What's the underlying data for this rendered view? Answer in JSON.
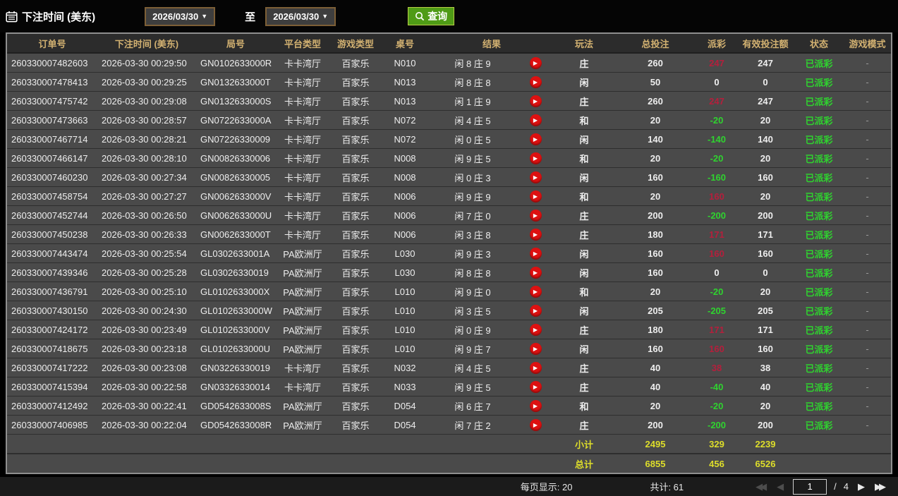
{
  "colors": {
    "header_gold": "#d2b171",
    "payout_red": "#b41f3c",
    "payout_green": "#2fd32f",
    "status_green": "#2fd32f",
    "footer_yellow": "#dede2a",
    "button_green": "#4f9b16"
  },
  "icons": {
    "calendar": "calendar-icon",
    "search": "search-icon",
    "dropdown": "▼",
    "play": "▶",
    "first": "◀◀",
    "prev": "◀",
    "next": "▶",
    "last": "▶▶"
  },
  "topbar": {
    "label": "下注时间 (美东)",
    "date_from": "2026/03/30",
    "to_label": "至",
    "date_to": "2026/03/30",
    "search_label": "查询"
  },
  "table": {
    "headers": [
      "订单号",
      "下注时间 (美东)",
      "局号",
      "平台类型",
      "游戏类型",
      "桌号",
      "结果",
      "玩法",
      "总投注",
      "派彩",
      "有效投注额",
      "状态",
      "游戏模式"
    ],
    "rows": [
      {
        "order": "260330007482603",
        "time": "2026-03-30 00:29:50",
        "round": "GN0102633000R",
        "platform": "卡卡湾厅",
        "game": "百家乐",
        "table": "N010",
        "result": "闲 8 庄 9",
        "bet_on": "庄",
        "bet": "260",
        "payout": "247",
        "payout_state": "pos",
        "valid": "247",
        "status": "已派彩",
        "mode": "-"
      },
      {
        "order": "260330007478413",
        "time": "2026-03-30 00:29:25",
        "round": "GN0132633000T",
        "platform": "卡卡湾厅",
        "game": "百家乐",
        "table": "N013",
        "result": "闲 8 庄 8",
        "bet_on": "闲",
        "bet": "50",
        "payout": "0",
        "payout_state": "zero",
        "valid": "0",
        "status": "已派彩",
        "mode": "-"
      },
      {
        "order": "260330007475742",
        "time": "2026-03-30 00:29:08",
        "round": "GN0132633000S",
        "platform": "卡卡湾厅",
        "game": "百家乐",
        "table": "N013",
        "result": "闲 1 庄 9",
        "bet_on": "庄",
        "bet": "260",
        "payout": "247",
        "payout_state": "pos",
        "valid": "247",
        "status": "已派彩",
        "mode": "-"
      },
      {
        "order": "260330007473663",
        "time": "2026-03-30 00:28:57",
        "round": "GN0722633000A",
        "platform": "卡卡湾厅",
        "game": "百家乐",
        "table": "N072",
        "result": "闲 4 庄 5",
        "bet_on": "和",
        "bet": "20",
        "payout": "-20",
        "payout_state": "neg",
        "valid": "20",
        "status": "已派彩",
        "mode": "-"
      },
      {
        "order": "260330007467714",
        "time": "2026-03-30 00:28:21",
        "round": "GN07226330009",
        "platform": "卡卡湾厅",
        "game": "百家乐",
        "table": "N072",
        "result": "闲 0 庄 5",
        "bet_on": "闲",
        "bet": "140",
        "payout": "-140",
        "payout_state": "neg",
        "valid": "140",
        "status": "已派彩",
        "mode": "-"
      },
      {
        "order": "260330007466147",
        "time": "2026-03-30 00:28:10",
        "round": "GN00826330006",
        "platform": "卡卡湾厅",
        "game": "百家乐",
        "table": "N008",
        "result": "闲 9 庄 5",
        "bet_on": "和",
        "bet": "20",
        "payout": "-20",
        "payout_state": "neg",
        "valid": "20",
        "status": "已派彩",
        "mode": "-"
      },
      {
        "order": "260330007460230",
        "time": "2026-03-30 00:27:34",
        "round": "GN00826330005",
        "platform": "卡卡湾厅",
        "game": "百家乐",
        "table": "N008",
        "result": "闲 0 庄 3",
        "bet_on": "闲",
        "bet": "160",
        "payout": "-160",
        "payout_state": "neg",
        "valid": "160",
        "status": "已派彩",
        "mode": "-"
      },
      {
        "order": "260330007458754",
        "time": "2026-03-30 00:27:27",
        "round": "GN0062633000V",
        "platform": "卡卡湾厅",
        "game": "百家乐",
        "table": "N006",
        "result": "闲 9 庄 9",
        "bet_on": "和",
        "bet": "20",
        "payout": "160",
        "payout_state": "pos",
        "valid": "20",
        "status": "已派彩",
        "mode": "-"
      },
      {
        "order": "260330007452744",
        "time": "2026-03-30 00:26:50",
        "round": "GN0062633000U",
        "platform": "卡卡湾厅",
        "game": "百家乐",
        "table": "N006",
        "result": "闲 7 庄 0",
        "bet_on": "庄",
        "bet": "200",
        "payout": "-200",
        "payout_state": "neg",
        "valid": "200",
        "status": "已派彩",
        "mode": "-"
      },
      {
        "order": "260330007450238",
        "time": "2026-03-30 00:26:33",
        "round": "GN0062633000T",
        "platform": "卡卡湾厅",
        "game": "百家乐",
        "table": "N006",
        "result": "闲 3 庄 8",
        "bet_on": "庄",
        "bet": "180",
        "payout": "171",
        "payout_state": "pos",
        "valid": "171",
        "status": "已派彩",
        "mode": "-"
      },
      {
        "order": "260330007443474",
        "time": "2026-03-30 00:25:54",
        "round": "GL0302633001A",
        "platform": "PA欧洲厅",
        "game": "百家乐",
        "table": "L030",
        "result": "闲 9 庄 3",
        "bet_on": "闲",
        "bet": "160",
        "payout": "160",
        "payout_state": "pos",
        "valid": "160",
        "status": "已派彩",
        "mode": "-"
      },
      {
        "order": "260330007439346",
        "time": "2026-03-30 00:25:28",
        "round": "GL03026330019",
        "platform": "PA欧洲厅",
        "game": "百家乐",
        "table": "L030",
        "result": "闲 8 庄 8",
        "bet_on": "闲",
        "bet": "160",
        "payout": "0",
        "payout_state": "zero",
        "valid": "0",
        "status": "已派彩",
        "mode": "-"
      },
      {
        "order": "260330007436791",
        "time": "2026-03-30 00:25:10",
        "round": "GL0102633000X",
        "platform": "PA欧洲厅",
        "game": "百家乐",
        "table": "L010",
        "result": "闲 9 庄 0",
        "bet_on": "和",
        "bet": "20",
        "payout": "-20",
        "payout_state": "neg",
        "valid": "20",
        "status": "已派彩",
        "mode": "-"
      },
      {
        "order": "260330007430150",
        "time": "2026-03-30 00:24:30",
        "round": "GL0102633000W",
        "platform": "PA欧洲厅",
        "game": "百家乐",
        "table": "L010",
        "result": "闲 3 庄 5",
        "bet_on": "闲",
        "bet": "205",
        "payout": "-205",
        "payout_state": "neg",
        "valid": "205",
        "status": "已派彩",
        "mode": "-"
      },
      {
        "order": "260330007424172",
        "time": "2026-03-30 00:23:49",
        "round": "GL0102633000V",
        "platform": "PA欧洲厅",
        "game": "百家乐",
        "table": "L010",
        "result": "闲 0 庄 9",
        "bet_on": "庄",
        "bet": "180",
        "payout": "171",
        "payout_state": "pos",
        "valid": "171",
        "status": "已派彩",
        "mode": "-"
      },
      {
        "order": "260330007418675",
        "time": "2026-03-30 00:23:18",
        "round": "GL0102633000U",
        "platform": "PA欧洲厅",
        "game": "百家乐",
        "table": "L010",
        "result": "闲 9 庄 7",
        "bet_on": "闲",
        "bet": "160",
        "payout": "160",
        "payout_state": "pos",
        "valid": "160",
        "status": "已派彩",
        "mode": "-"
      },
      {
        "order": "260330007417222",
        "time": "2026-03-30 00:23:08",
        "round": "GN03226330019",
        "platform": "卡卡湾厅",
        "game": "百家乐",
        "table": "N032",
        "result": "闲 4 庄 5",
        "bet_on": "庄",
        "bet": "40",
        "payout": "38",
        "payout_state": "pos",
        "valid": "38",
        "status": "已派彩",
        "mode": "-"
      },
      {
        "order": "260330007415394",
        "time": "2026-03-30 00:22:58",
        "round": "GN03326330014",
        "platform": "卡卡湾厅",
        "game": "百家乐",
        "table": "N033",
        "result": "闲 9 庄 5",
        "bet_on": "庄",
        "bet": "40",
        "payout": "-40",
        "payout_state": "neg",
        "valid": "40",
        "status": "已派彩",
        "mode": "-"
      },
      {
        "order": "260330007412492",
        "time": "2026-03-30 00:22:41",
        "round": "GD0542633008S",
        "platform": "PA欧洲厅",
        "game": "百家乐",
        "table": "D054",
        "result": "闲 6 庄 7",
        "bet_on": "和",
        "bet": "20",
        "payout": "-20",
        "payout_state": "neg",
        "valid": "20",
        "status": "已派彩",
        "mode": "-"
      },
      {
        "order": "260330007406985",
        "time": "2026-03-30 00:22:04",
        "round": "GD0542633008R",
        "platform": "PA欧洲厅",
        "game": "百家乐",
        "table": "D054",
        "result": "闲 7 庄 2",
        "bet_on": "庄",
        "bet": "200",
        "payout": "-200",
        "payout_state": "neg",
        "valid": "200",
        "status": "已派彩",
        "mode": "-"
      }
    ],
    "subtotal": {
      "label": "小计",
      "bet": "2495",
      "payout": "329",
      "valid": "2239"
    },
    "total": {
      "label": "总计",
      "bet": "6855",
      "payout": "456",
      "valid": "6526"
    }
  },
  "pagination": {
    "per_page_label": "每页显示: 20",
    "total_label": "共计: 61",
    "current_page": "1",
    "separator": "/",
    "total_pages": "4"
  }
}
